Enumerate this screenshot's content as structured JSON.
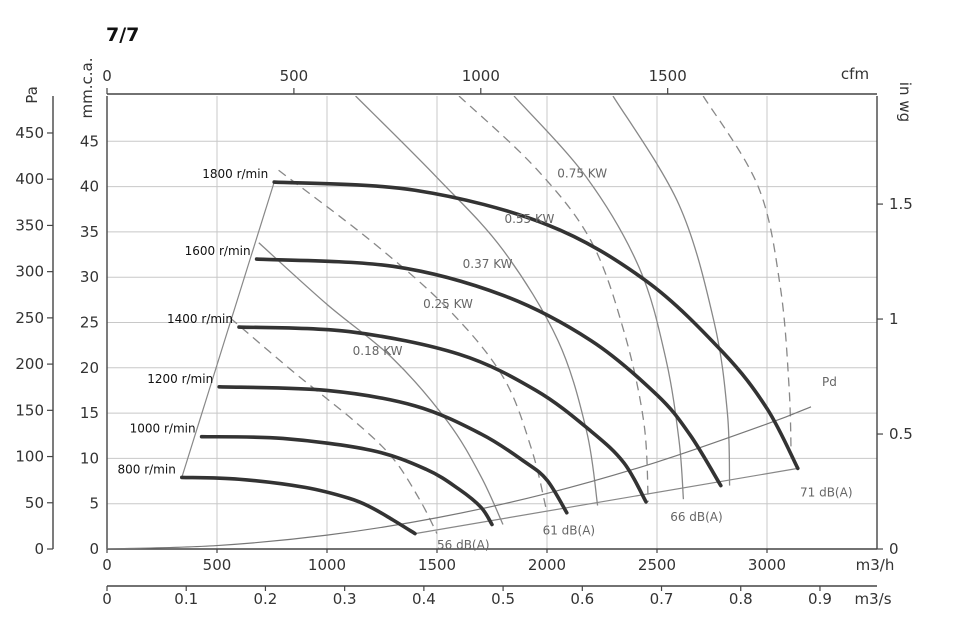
{
  "chart_data": {
    "type": "line",
    "title": "7/7",
    "x_primary": {
      "unit": "m3/h",
      "range": [
        0,
        3500
      ],
      "ticks": [
        0,
        500,
        1000,
        1500,
        2000,
        2500,
        3000
      ]
    },
    "x_secondary_m3s": {
      "unit": "m3/s",
      "range": [
        0,
        0.972
      ],
      "ticks": [
        "0",
        "0.1",
        "0.2",
        "0.3",
        "0.4",
        "0.5",
        "0.6",
        "0.7",
        "0.8",
        "0.9"
      ]
    },
    "x_top_cfm": {
      "unit": "cfm",
      "range": [
        0,
        2060
      ],
      "ticks": [
        "0",
        "500",
        "1000",
        "1500"
      ]
    },
    "y_mmca": {
      "unit": "mm.c.a.",
      "range": [
        0,
        50
      ],
      "ticks": [
        "0",
        "5",
        "10",
        "15",
        "20",
        "25",
        "30",
        "35",
        "40",
        "45"
      ]
    },
    "y_pa": {
      "unit": "Pa",
      "range": [
        0,
        490
      ],
      "ticks": [
        "0",
        "50",
        "100",
        "150",
        "200",
        "250",
        "300",
        "350",
        "400",
        "450"
      ]
    },
    "y_inwg": {
      "unit": "in wg",
      "range": [
        0,
        1.97
      ],
      "ticks": [
        "0",
        "0.5",
        "1",
        "1.5"
      ]
    },
    "grid": true,
    "speed_curves": [
      {
        "name": "800 r/min",
        "x": [
          340,
          600,
          900,
          1100,
          1200,
          1300,
          1400
        ],
        "y": [
          7.9,
          7.7,
          6.8,
          5.6,
          4.6,
          3.2,
          1.7
        ]
      },
      {
        "name": "1000 r/min",
        "x": [
          430,
          800,
          1200,
          1450,
          1600,
          1700,
          1750
        ],
        "y": [
          12.4,
          12.2,
          10.9,
          8.8,
          6.6,
          4.6,
          2.7
        ]
      },
      {
        "name": "1200 r/min",
        "x": [
          510,
          1000,
          1400,
          1700,
          1900,
          2000,
          2090
        ],
        "y": [
          17.9,
          17.5,
          15.8,
          12.7,
          9.6,
          7.6,
          4.0
        ]
      },
      {
        "name": "1400 r/min",
        "x": [
          600,
          1100,
          1600,
          1950,
          2200,
          2350,
          2450
        ],
        "y": [
          24.5,
          24.0,
          21.5,
          17.5,
          13.0,
          9.5,
          5.2
        ]
      },
      {
        "name": "1600 r/min",
        "x": [
          680,
          1300,
          1800,
          2200,
          2500,
          2650,
          2790
        ],
        "y": [
          32.0,
          31.2,
          28.0,
          23.0,
          17.0,
          12.6,
          7.0
        ]
      },
      {
        "name": "1800 r/min",
        "x": [
          760,
          1400,
          2000,
          2450,
          2800,
          3000,
          3140
        ],
        "y": [
          40.5,
          39.6,
          35.8,
          29.6,
          21.7,
          15.5,
          8.9
        ]
      }
    ],
    "power_curves": [
      {
        "name": "0.18 KW",
        "x": [
          560,
          850,
          1130,
          1300,
          1420,
          1500
        ],
        "y": [
          25.5,
          19.5,
          14.0,
          10.0,
          5.5,
          1.7
        ],
        "dashed": true
      },
      {
        "name": "0.25 KW",
        "x": [
          690,
          1000,
          1300,
          1550,
          1700,
          1800
        ],
        "y": [
          33.8,
          27.0,
          21.0,
          14.0,
          8.0,
          2.7
        ],
        "dashed": false
      },
      {
        "name": "0.37 KW",
        "x": [
          780,
          1200,
          1550,
          1800,
          1930,
          2000
        ],
        "y": [
          41.8,
          34.0,
          26.5,
          19.0,
          11.0,
          4.0
        ],
        "dashed": true
      },
      {
        "name": "0.55 KW",
        "x": [
          1130,
          1500,
          1800,
          2050,
          2180,
          2230
        ],
        "y": [
          50.0,
          41.0,
          33.0,
          23.0,
          13.0,
          4.8
        ],
        "dashed": false
      },
      {
        "name": "0.75 KW",
        "x": [
          1600,
          1950,
          2200,
          2350,
          2440,
          2460
        ],
        "y": [
          50.0,
          42.0,
          34.0,
          24.0,
          14.0,
          5.2
        ],
        "dashed": true
      },
      {
        "name": "",
        "x": [
          1850,
          2180,
          2420,
          2540,
          2600,
          2620
        ],
        "y": [
          50.0,
          41.0,
          31.0,
          21.0,
          12.0,
          5.5
        ],
        "dashed": false
      },
      {
        "name": "",
        "x": [
          2300,
          2600,
          2760,
          2820,
          2830
        ],
        "y": [
          50.0,
          38.0,
          25.0,
          15.0,
          7.0
        ],
        "dashed": false
      },
      {
        "name": "",
        "x": [
          2710,
          2960,
          3060,
          3100,
          3110
        ],
        "y": [
          50.0,
          40.0,
          29.0,
          18.0,
          10.0
        ],
        "dashed": true
      }
    ],
    "speed_limit_line": {
      "x": [
        760,
        340
      ],
      "y": [
        40.5,
        7.9
      ]
    },
    "pd_curve": {
      "name": "Pd",
      "x": [
        0,
        500,
        1000,
        1500,
        2000,
        2500,
        3000,
        3200
      ],
      "y": [
        0,
        0.38,
        1.53,
        3.45,
        6.13,
        9.6,
        13.8,
        15.7
      ]
    },
    "noise_line": {
      "x": [
        1400,
        3140
      ],
      "y": [
        1.7,
        8.9
      ]
    },
    "noise_labels": [
      "56 dB(A)",
      "61 dB(A)",
      "66 dB(A)",
      "71 dB(A)"
    ]
  }
}
